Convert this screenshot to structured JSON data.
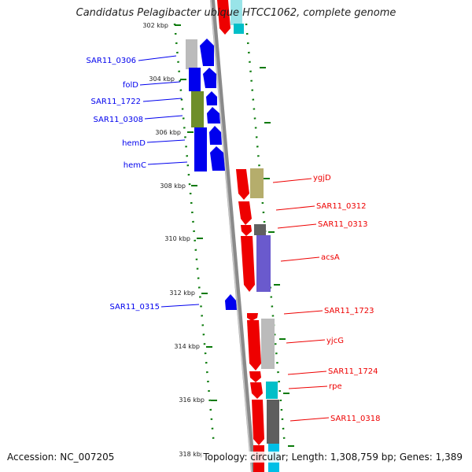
{
  "title": "Candidatus Pelagibacter ubique HTCC1062, complete genome",
  "accession": "Accession: NC_007205",
  "topology": "Topology: circular; Length: 1,308,759 bp; Genes: 1,389",
  "colors": {
    "forward_gene": "#0000ee",
    "reverse_gene": "#ee0000",
    "tick": "#0a7a0a",
    "backbone": "#888888"
  },
  "ruler": {
    "unit": "kbp",
    "labels": [
      "302 kbp",
      "304 kbp",
      "306 kbp",
      "308 kbp",
      "310 kbp",
      "312 kbp",
      "314 kbp",
      "316 kbp",
      "318 kbp"
    ]
  },
  "genes_left": [
    "SAR11_0306",
    "folD",
    "SAR11_1722",
    "SAR11_0308",
    "hemD",
    "hemC",
    "SAR11_0315"
  ],
  "genes_right": [
    "ygjD",
    "SAR11_0312",
    "SAR11_0313",
    "acsA",
    "SAR11_1723",
    "yjcG",
    "SAR11_1724",
    "rpe",
    "SAR11_0318"
  ]
}
